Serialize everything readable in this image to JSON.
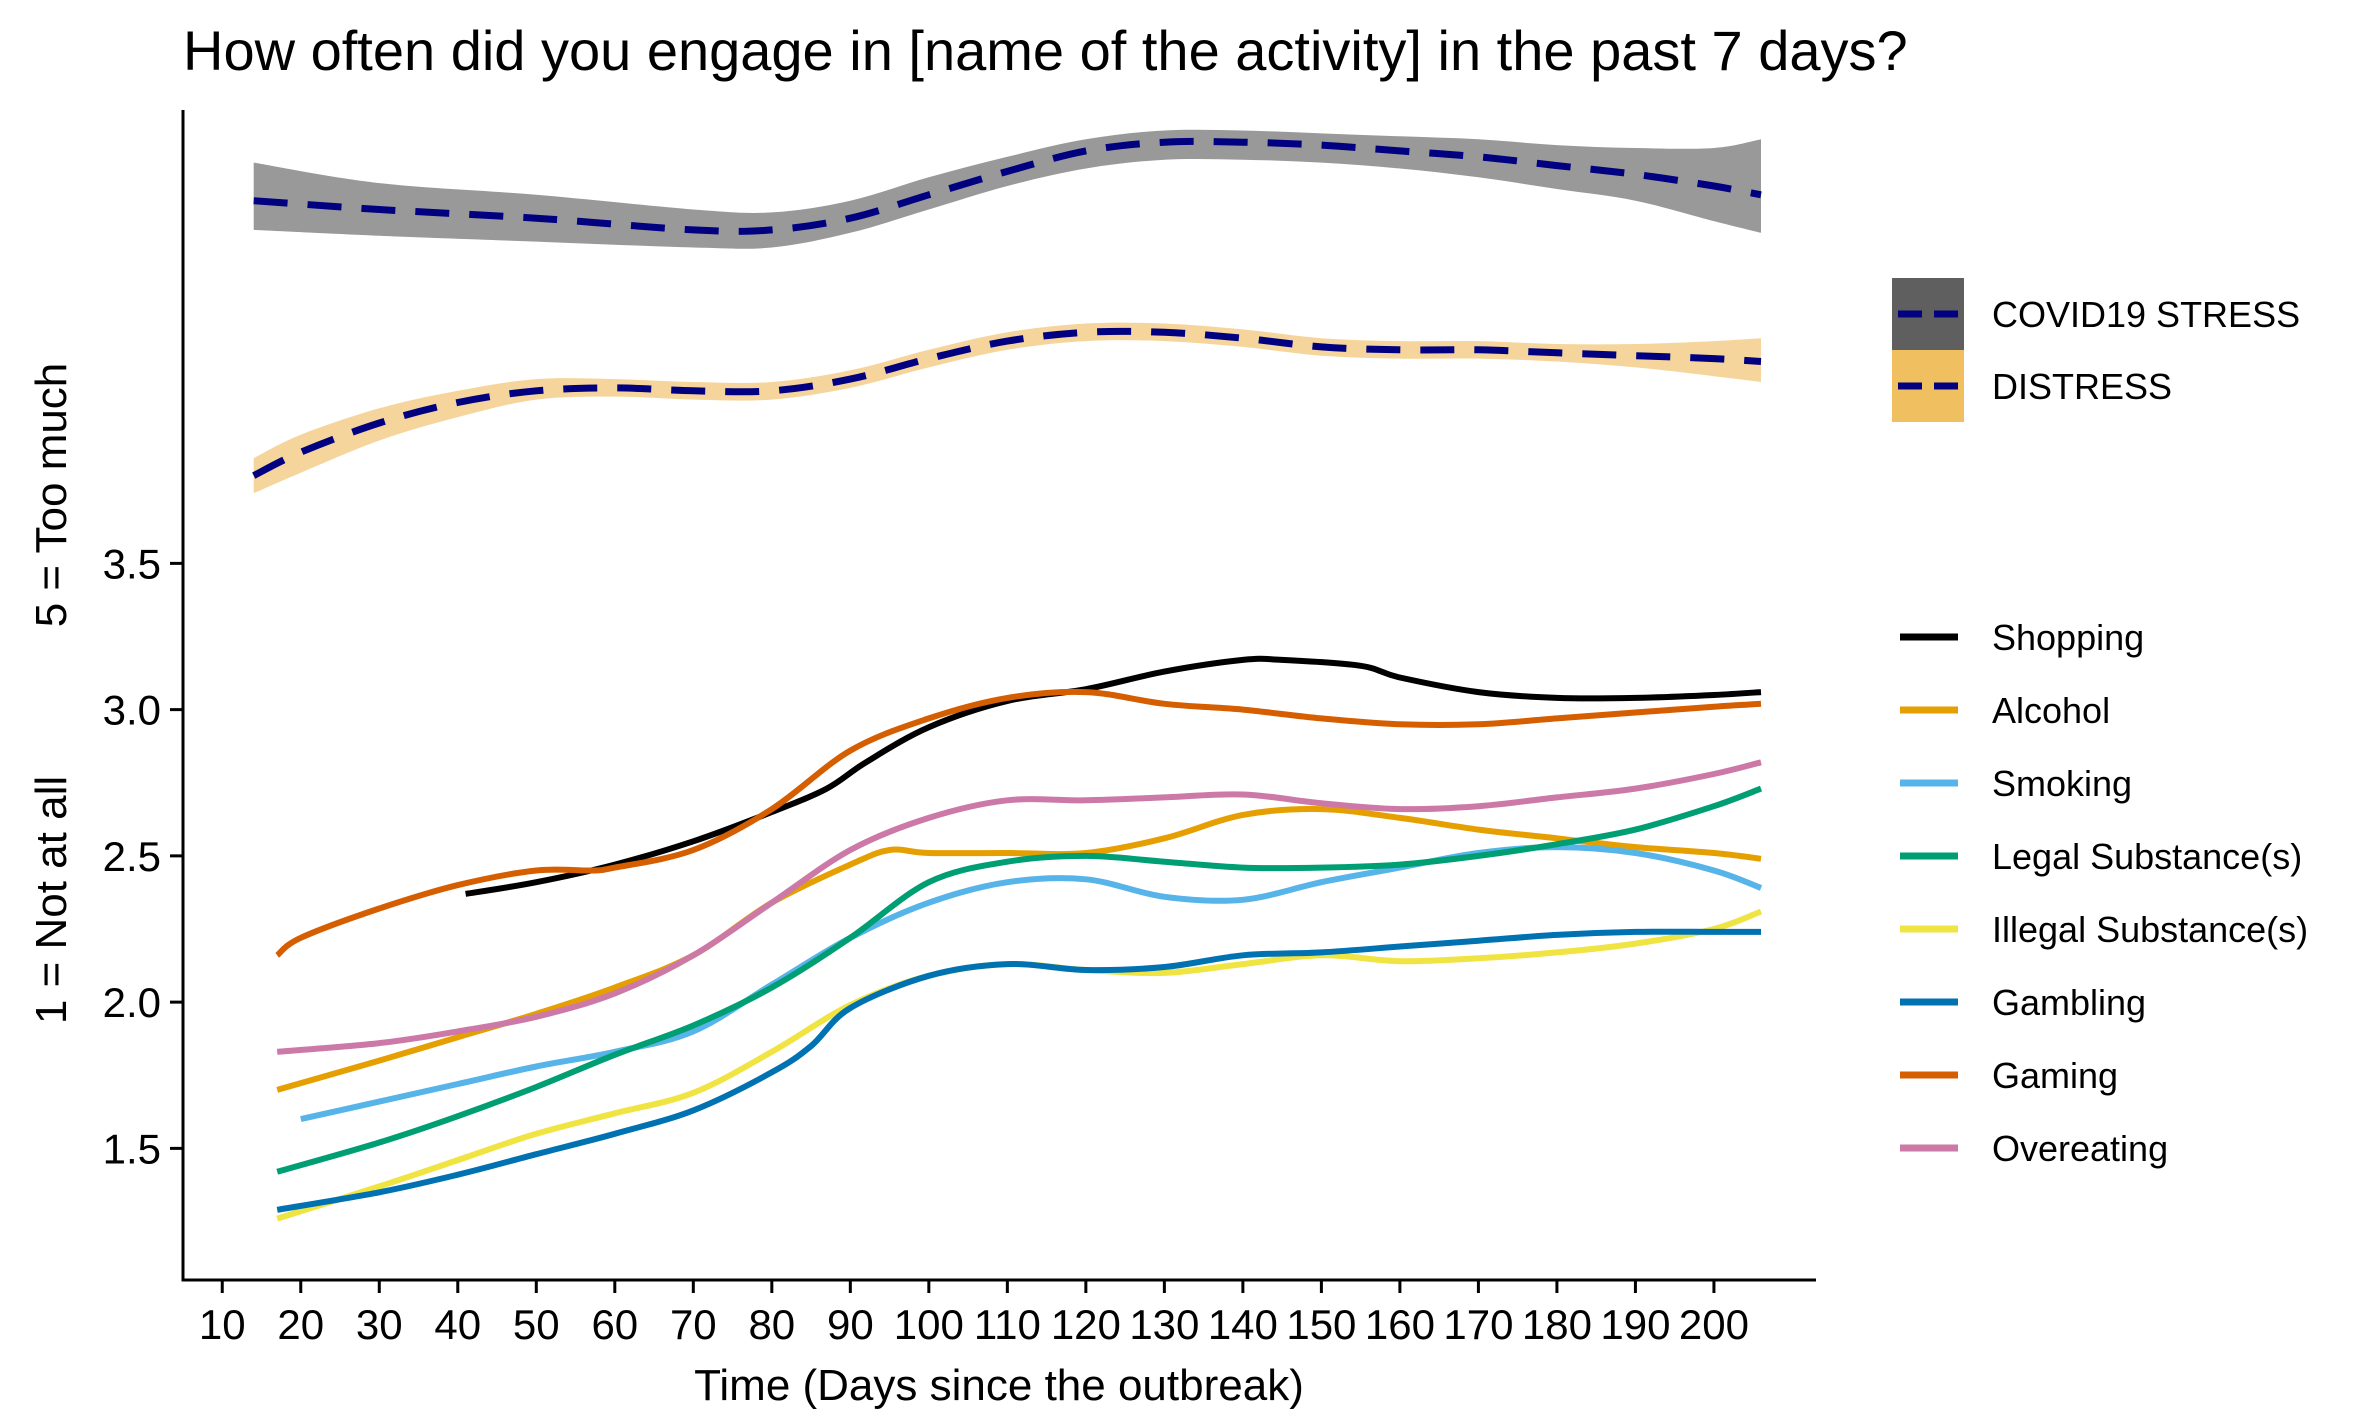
{
  "chart_data": {
    "type": "line",
    "title": "How often did you engage in [name of the activity] in the past 7 days?",
    "xlabel": "Time (Days since the outbreak)",
    "ylabel_top": "5 = Too much",
    "ylabel_bottom": "1 = Not at all",
    "xlim": [
      5,
      213
    ],
    "ylim": [
      1.05,
      5.05
    ],
    "x_ticks": [
      10,
      20,
      30,
      40,
      50,
      60,
      70,
      80,
      90,
      100,
      110,
      120,
      130,
      140,
      150,
      160,
      170,
      180,
      190,
      200
    ],
    "y_ticks": [
      1.5,
      2.0,
      2.5,
      3.0,
      3.5
    ],
    "grid": false,
    "legend_position": "right",
    "upper_series": [
      {
        "name": "COVID19 STRESS",
        "line_color": "#000080",
        "band_color": "#999999",
        "legend_fill": "#5f5f5f",
        "x": [
          14,
          30,
          50,
          70,
          80,
          90,
          100,
          110,
          120,
          130,
          140,
          150,
          160,
          170,
          180,
          190,
          200,
          206
        ],
        "y": [
          4.74,
          4.71,
          4.68,
          4.64,
          4.64,
          4.68,
          4.76,
          4.84,
          4.91,
          4.94,
          4.94,
          4.93,
          4.91,
          4.89,
          4.86,
          4.83,
          4.79,
          4.76
        ],
        "lower": [
          4.64,
          4.62,
          4.6,
          4.58,
          4.58,
          4.63,
          4.71,
          4.79,
          4.85,
          4.88,
          4.88,
          4.87,
          4.85,
          4.82,
          4.78,
          4.74,
          4.67,
          4.63
        ],
        "upper": [
          4.87,
          4.8,
          4.76,
          4.71,
          4.7,
          4.74,
          4.82,
          4.89,
          4.95,
          4.98,
          4.98,
          4.97,
          4.96,
          4.95,
          4.93,
          4.92,
          4.92,
          4.95
        ]
      },
      {
        "name": "DISTRESS",
        "line_color": "#000080",
        "band_color": "#f5d59b",
        "legend_fill": "#f0c060",
        "x": [
          14,
          20,
          30,
          40,
          50,
          60,
          70,
          80,
          90,
          100,
          110,
          120,
          130,
          140,
          150,
          160,
          170,
          180,
          190,
          200,
          206
        ],
        "y": [
          3.8,
          3.88,
          3.98,
          4.05,
          4.09,
          4.1,
          4.09,
          4.09,
          4.13,
          4.2,
          4.26,
          4.29,
          4.29,
          4.27,
          4.24,
          4.23,
          4.23,
          4.22,
          4.21,
          4.2,
          4.19
        ],
        "lower": [
          3.74,
          3.81,
          3.92,
          4.0,
          4.06,
          4.07,
          4.06,
          4.06,
          4.1,
          4.17,
          4.23,
          4.26,
          4.26,
          4.24,
          4.21,
          4.2,
          4.2,
          4.19,
          4.17,
          4.14,
          4.12
        ],
        "upper": [
          3.86,
          3.94,
          4.03,
          4.09,
          4.13,
          4.13,
          4.12,
          4.12,
          4.16,
          4.23,
          4.29,
          4.32,
          4.32,
          4.3,
          4.27,
          4.26,
          4.26,
          4.25,
          4.25,
          4.26,
          4.27
        ]
      }
    ],
    "series": [
      {
        "name": "Shopping",
        "color": "#000000",
        "x": [
          41,
          50,
          60,
          70,
          80,
          87,
          92,
          100,
          110,
          120,
          130,
          140,
          145,
          155,
          160,
          170,
          180,
          190,
          200,
          206
        ],
        "y": [
          2.37,
          2.41,
          2.47,
          2.55,
          2.65,
          2.73,
          2.82,
          2.94,
          3.03,
          3.07,
          3.13,
          3.17,
          3.17,
          3.15,
          3.11,
          3.06,
          3.04,
          3.04,
          3.05,
          3.06
        ]
      },
      {
        "name": "Alcohol",
        "color": "#e69f00",
        "x": [
          17,
          30,
          40,
          50,
          60,
          70,
          80,
          90,
          95,
          100,
          110,
          120,
          130,
          140,
          150,
          160,
          170,
          180,
          190,
          200,
          206
        ],
        "y": [
          1.7,
          1.8,
          1.88,
          1.96,
          2.05,
          2.16,
          2.34,
          2.47,
          2.52,
          2.51,
          2.51,
          2.51,
          2.56,
          2.64,
          2.66,
          2.63,
          2.59,
          2.56,
          2.53,
          2.51,
          2.49
        ]
      },
      {
        "name": "Smoking",
        "color": "#56b4e9",
        "x": [
          20,
          30,
          40,
          50,
          60,
          70,
          80,
          90,
          100,
          110,
          120,
          130,
          140,
          150,
          160,
          170,
          180,
          190,
          200,
          206
        ],
        "y": [
          1.6,
          1.66,
          1.72,
          1.78,
          1.83,
          1.9,
          2.06,
          2.22,
          2.34,
          2.41,
          2.42,
          2.36,
          2.35,
          2.41,
          2.46,
          2.51,
          2.53,
          2.51,
          2.45,
          2.39
        ]
      },
      {
        "name": "Legal Substance(s)",
        "color": "#009e73",
        "x": [
          17,
          30,
          40,
          50,
          60,
          70,
          80,
          90,
          100,
          110,
          120,
          130,
          140,
          150,
          160,
          170,
          180,
          190,
          200,
          206
        ],
        "y": [
          1.42,
          1.52,
          1.61,
          1.71,
          1.82,
          1.92,
          2.05,
          2.22,
          2.41,
          2.48,
          2.5,
          2.48,
          2.46,
          2.46,
          2.47,
          2.5,
          2.54,
          2.59,
          2.67,
          2.73
        ]
      },
      {
        "name": "Illegal Substance(s)",
        "color": "#f0e442",
        "x": [
          17,
          30,
          40,
          50,
          60,
          70,
          80,
          90,
          100,
          110,
          120,
          130,
          140,
          150,
          160,
          170,
          180,
          190,
          200,
          206
        ],
        "y": [
          1.26,
          1.37,
          1.46,
          1.55,
          1.62,
          1.69,
          1.83,
          1.99,
          2.09,
          2.13,
          2.11,
          2.1,
          2.13,
          2.16,
          2.14,
          2.15,
          2.17,
          2.2,
          2.25,
          2.31
        ]
      },
      {
        "name": "Gambling",
        "color": "#0072b2",
        "x": [
          17,
          30,
          40,
          50,
          60,
          70,
          80,
          85,
          90,
          100,
          110,
          120,
          130,
          140,
          150,
          160,
          170,
          180,
          190,
          200,
          206
        ],
        "y": [
          1.29,
          1.35,
          1.41,
          1.48,
          1.55,
          1.63,
          1.76,
          1.85,
          1.98,
          2.09,
          2.13,
          2.11,
          2.12,
          2.16,
          2.17,
          2.19,
          2.21,
          2.23,
          2.24,
          2.24,
          2.24
        ]
      },
      {
        "name": "Gaming",
        "color": "#d55e00",
        "x": [
          17,
          20,
          30,
          40,
          50,
          57,
          60,
          70,
          80,
          90,
          100,
          110,
          120,
          130,
          140,
          150,
          160,
          170,
          180,
          190,
          200,
          206
        ],
        "y": [
          2.16,
          2.22,
          2.32,
          2.4,
          2.45,
          2.45,
          2.46,
          2.52,
          2.66,
          2.86,
          2.97,
          3.04,
          3.06,
          3.02,
          3.0,
          2.97,
          2.95,
          2.95,
          2.97,
          2.99,
          3.01,
          3.02
        ]
      },
      {
        "name": "Overeating",
        "color": "#cc79a7",
        "x": [
          17,
          30,
          40,
          50,
          60,
          70,
          80,
          90,
          100,
          110,
          120,
          130,
          140,
          150,
          160,
          170,
          180,
          190,
          200,
          206
        ],
        "y": [
          1.83,
          1.86,
          1.9,
          1.95,
          2.03,
          2.16,
          2.34,
          2.52,
          2.63,
          2.69,
          2.69,
          2.7,
          2.71,
          2.68,
          2.66,
          2.67,
          2.7,
          2.73,
          2.78,
          2.82
        ]
      }
    ]
  }
}
